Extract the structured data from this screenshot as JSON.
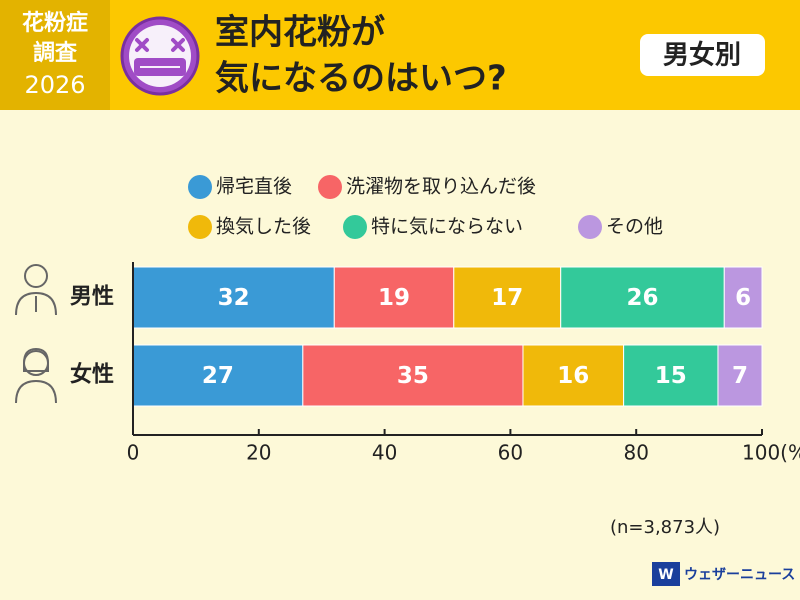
{
  "header": {
    "badge": [
      "花粉症",
      "調査",
      "2026"
    ],
    "title_lines": [
      "室内花粉が",
      "気になるのはいつ?"
    ],
    "tag": "男女別"
  },
  "chart_data": {
    "type": "stacked-bar-horizontal",
    "categories": [
      "男性",
      "女性"
    ],
    "series": [
      {
        "name": "帰宅直後",
        "color": "#3a9ad6",
        "values": [
          32,
          27
        ]
      },
      {
        "name": "洗濯物を取り込んだ後",
        "color": "#f76566",
        "values": [
          19,
          35
        ]
      },
      {
        "name": "換気した後",
        "color": "#f0b90a",
        "values": [
          17,
          16
        ]
      },
      {
        "name": "特に気にならない",
        "color": "#33c99a",
        "values": [
          26,
          15
        ]
      },
      {
        "name": "その他",
        "color": "#bb97e0",
        "values": [
          6,
          7
        ]
      }
    ],
    "xlim": [
      0,
      100
    ],
    "xticks": [
      0,
      20,
      40,
      60,
      80,
      {
        "value": 100,
        "label": "100(%)"
      }
    ],
    "note": "(n=3,873人)"
  },
  "footer": {
    "logo": "ウェザーニュース"
  }
}
